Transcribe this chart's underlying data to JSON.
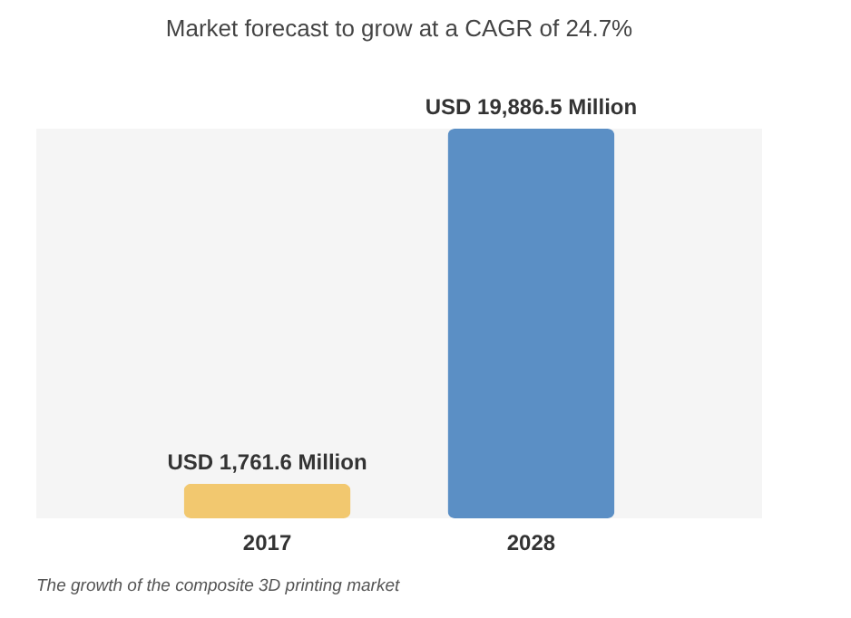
{
  "chart_data": {
    "type": "bar",
    "title": "Market forecast to grow at a CAGR of 24.7%",
    "categories": [
      "2017",
      "2028"
    ],
    "values": [
      1761.6,
      19886.5
    ],
    "colors": [
      "#f2c86f",
      "#5b8fc5"
    ],
    "value_labels": [
      "USD 1,761.6 Million",
      "USD 19,886.5 Million"
    ],
    "annotations": [
      "The growth of the composite 3D printing market"
    ]
  }
}
